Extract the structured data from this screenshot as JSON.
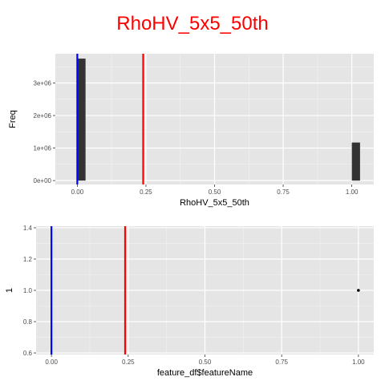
{
  "title": "RhoHV_5x5_50th",
  "colors": {
    "title": "#ff0000",
    "panel_bg": "#e5e5e5",
    "grid_major": "#ffffff",
    "grid_minor": "#f2f2f2",
    "bar_fill": "#333333",
    "vline_blue": "#0000ff",
    "vline_red": "#ff0000",
    "point": "#000000"
  },
  "chart_data": [
    {
      "type": "bar",
      "subtype": "histogram",
      "xlabel": "RhoHV_5x5_50th",
      "ylabel": "Freq",
      "xlim": [
        -0.08,
        1.08
      ],
      "ylim": [
        -120000,
        3900000
      ],
      "x_ticks": [
        0,
        0.25,
        0.5,
        0.75,
        1
      ],
      "x_tick_labels": [
        "0.00",
        "0.25",
        "0.50",
        "0.75",
        "1.00"
      ],
      "y_ticks": [
        0,
        1000000,
        2000000,
        3000000
      ],
      "y_tick_labels": [
        "0e+00",
        "1e+06",
        "2e+06",
        "3e+06"
      ],
      "grid": true,
      "bars": [
        {
          "x0": 0.0,
          "x1": 0.03,
          "value": 3750000
        },
        {
          "x0": 1.0,
          "x1": 1.03,
          "value": 1170000
        }
      ],
      "vlines": [
        {
          "x": 0.0,
          "color": "#0000ff"
        },
        {
          "x": 0.24,
          "color": "#ff0000"
        }
      ]
    },
    {
      "type": "scatter",
      "xlabel": "feature_df$featureName",
      "ylabel": "1",
      "xlim": [
        -0.05,
        1.05
      ],
      "ylim": [
        0.59,
        1.41
      ],
      "x_ticks": [
        0,
        0.25,
        0.5,
        0.75,
        1
      ],
      "x_tick_labels": [
        "0.00",
        "0.25",
        "0.50",
        "0.75",
        "1.00"
      ],
      "y_ticks": [
        0.6,
        0.8,
        1.0,
        1.2,
        1.4
      ],
      "y_tick_labels": [
        "0.6",
        "0.8",
        "1.0",
        "1.2",
        "1.4"
      ],
      "grid": true,
      "points": [
        {
          "x": 1.0,
          "y": 1.0
        }
      ],
      "vlines": [
        {
          "x": 0.0,
          "color": "#0000ff"
        },
        {
          "x": 0.24,
          "color": "#ff0000"
        }
      ]
    }
  ]
}
